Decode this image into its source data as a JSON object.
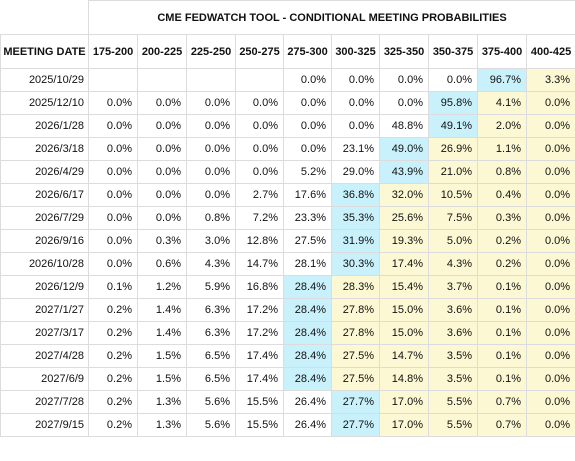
{
  "title": "CME FEDWATCH TOOL - CONDITIONAL MEETING PROBABILITIES",
  "columns": [
    "MEETING DATE",
    "175-200",
    "200-225",
    "225-250",
    "250-275",
    "275-300",
    "300-325",
    "325-350",
    "350-375",
    "375-400",
    "400-425"
  ],
  "colors": {
    "max_cell": "#c9f1fb",
    "above_max": "#fbf8d3"
  },
  "rows": [
    {
      "date": "2025/10/29",
      "values": [
        "",
        "",
        "",
        "",
        "0.0%",
        "0.0%",
        "0.0%",
        "0.0%",
        "96.7%",
        "3.3%"
      ],
      "max": 8
    },
    {
      "date": "2025/12/10",
      "values": [
        "0.0%",
        "0.0%",
        "0.0%",
        "0.0%",
        "0.0%",
        "0.0%",
        "0.0%",
        "95.8%",
        "4.1%",
        "0.0%"
      ],
      "max": 7
    },
    {
      "date": "2026/1/28",
      "values": [
        "0.0%",
        "0.0%",
        "0.0%",
        "0.0%",
        "0.0%",
        "0.0%",
        "48.8%",
        "49.1%",
        "2.0%",
        "0.0%"
      ],
      "max": 7
    },
    {
      "date": "2026/3/18",
      "values": [
        "0.0%",
        "0.0%",
        "0.0%",
        "0.0%",
        "0.0%",
        "23.1%",
        "49.0%",
        "26.9%",
        "1.1%",
        "0.0%"
      ],
      "max": 6
    },
    {
      "date": "2026/4/29",
      "values": [
        "0.0%",
        "0.0%",
        "0.0%",
        "0.0%",
        "5.2%",
        "29.0%",
        "43.9%",
        "21.0%",
        "0.8%",
        "0.0%"
      ],
      "max": 6
    },
    {
      "date": "2026/6/17",
      "values": [
        "0.0%",
        "0.0%",
        "0.0%",
        "2.7%",
        "17.6%",
        "36.8%",
        "32.0%",
        "10.5%",
        "0.4%",
        "0.0%"
      ],
      "max": 5
    },
    {
      "date": "2026/7/29",
      "values": [
        "0.0%",
        "0.0%",
        "0.8%",
        "7.2%",
        "23.3%",
        "35.3%",
        "25.6%",
        "7.5%",
        "0.3%",
        "0.0%"
      ],
      "max": 5
    },
    {
      "date": "2026/9/16",
      "values": [
        "0.0%",
        "0.3%",
        "3.0%",
        "12.8%",
        "27.5%",
        "31.9%",
        "19.3%",
        "5.0%",
        "0.2%",
        "0.0%"
      ],
      "max": 5
    },
    {
      "date": "2026/10/28",
      "values": [
        "0.0%",
        "0.6%",
        "4.3%",
        "14.7%",
        "28.1%",
        "30.3%",
        "17.4%",
        "4.3%",
        "0.2%",
        "0.0%"
      ],
      "max": 5
    },
    {
      "date": "2026/12/9",
      "values": [
        "0.1%",
        "1.2%",
        "5.9%",
        "16.8%",
        "28.4%",
        "28.3%",
        "15.4%",
        "3.7%",
        "0.1%",
        "0.0%"
      ],
      "max": 4
    },
    {
      "date": "2027/1/27",
      "values": [
        "0.2%",
        "1.4%",
        "6.3%",
        "17.2%",
        "28.4%",
        "27.8%",
        "15.0%",
        "3.6%",
        "0.1%",
        "0.0%"
      ],
      "max": 4
    },
    {
      "date": "2027/3/17",
      "values": [
        "0.2%",
        "1.4%",
        "6.3%",
        "17.2%",
        "28.4%",
        "27.8%",
        "15.0%",
        "3.6%",
        "0.1%",
        "0.0%"
      ],
      "max": 4
    },
    {
      "date": "2027/4/28",
      "values": [
        "0.2%",
        "1.5%",
        "6.5%",
        "17.4%",
        "28.4%",
        "27.5%",
        "14.7%",
        "3.5%",
        "0.1%",
        "0.0%"
      ],
      "max": 4
    },
    {
      "date": "2027/6/9",
      "values": [
        "0.2%",
        "1.5%",
        "6.5%",
        "17.4%",
        "28.4%",
        "27.5%",
        "14.8%",
        "3.5%",
        "0.1%",
        "0.0%"
      ],
      "max": 4
    },
    {
      "date": "2027/7/28",
      "values": [
        "0.2%",
        "1.3%",
        "5.6%",
        "15.5%",
        "26.4%",
        "27.7%",
        "17.0%",
        "5.5%",
        "0.7%",
        "0.0%"
      ],
      "max": 5
    },
    {
      "date": "2027/9/15",
      "values": [
        "0.2%",
        "1.3%",
        "5.6%",
        "15.5%",
        "26.4%",
        "27.7%",
        "17.0%",
        "5.5%",
        "0.7%",
        "0.0%"
      ],
      "max": 5
    }
  ]
}
